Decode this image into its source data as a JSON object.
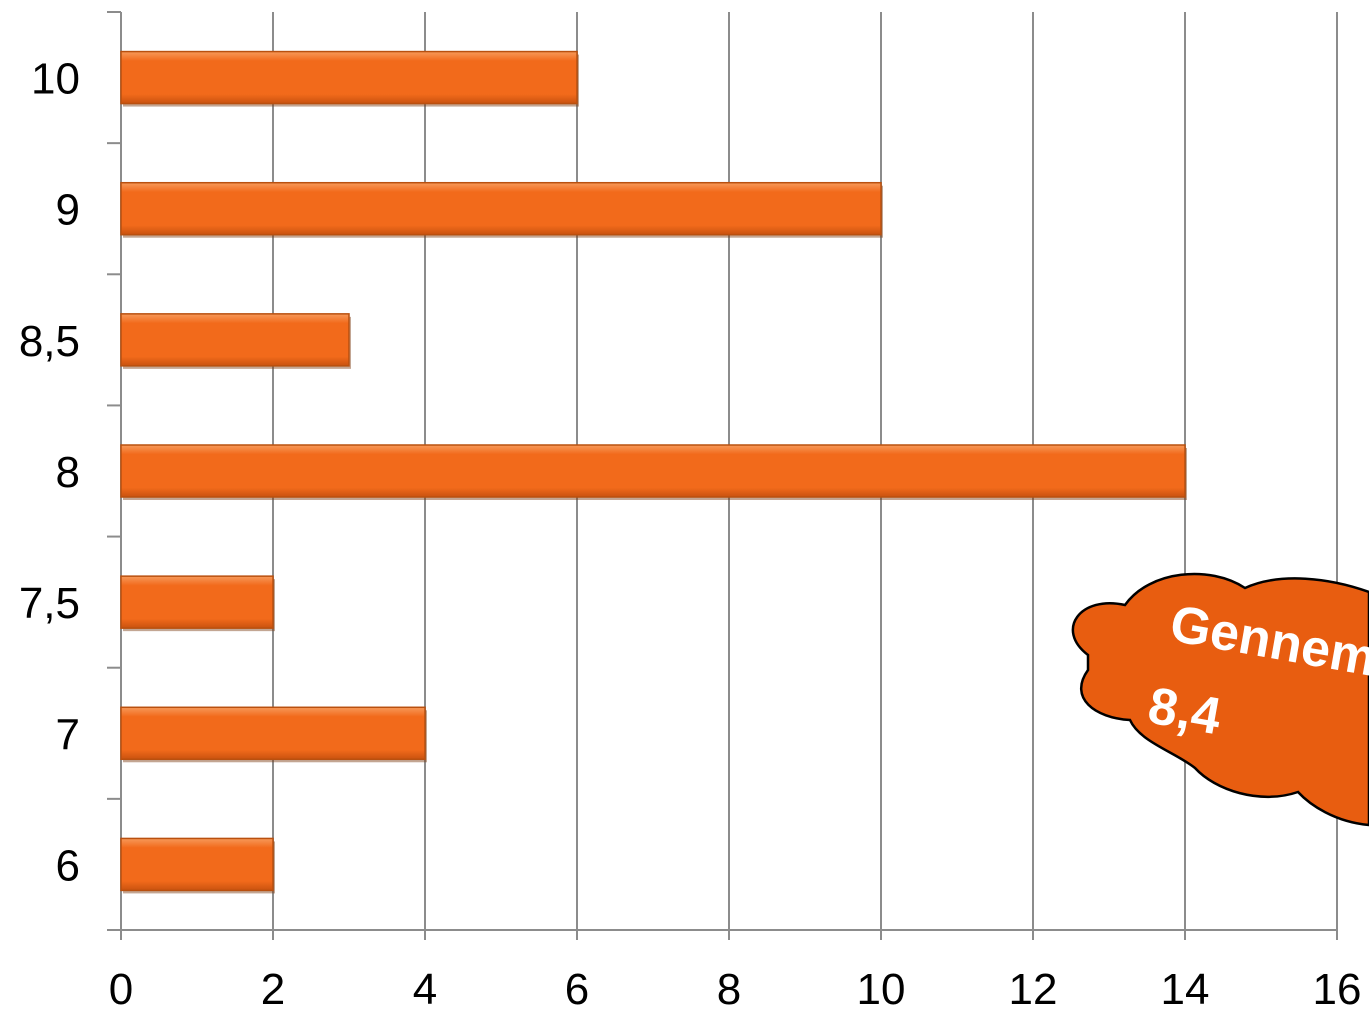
{
  "chart_data": {
    "type": "bar",
    "orientation": "horizontal",
    "categories": [
      "10",
      "9",
      "8,5",
      "8",
      "7,5",
      "7",
      "6"
    ],
    "values": [
      6,
      10,
      3,
      14,
      2,
      4,
      2
    ],
    "title": "",
    "xlabel": "",
    "ylabel": "",
    "xlim": [
      0,
      16
    ],
    "xticks": [
      "0",
      "2",
      "4",
      "6",
      "8",
      "10",
      "12",
      "14",
      "16"
    ],
    "grid": "vertical",
    "legend": "none",
    "bar_color": "#f26a1b",
    "gridline_color": "#8c8c8c",
    "callout": {
      "shape": "cloud",
      "color": "#e85d10",
      "line1": "Gennem",
      "line2": "8,4"
    }
  }
}
